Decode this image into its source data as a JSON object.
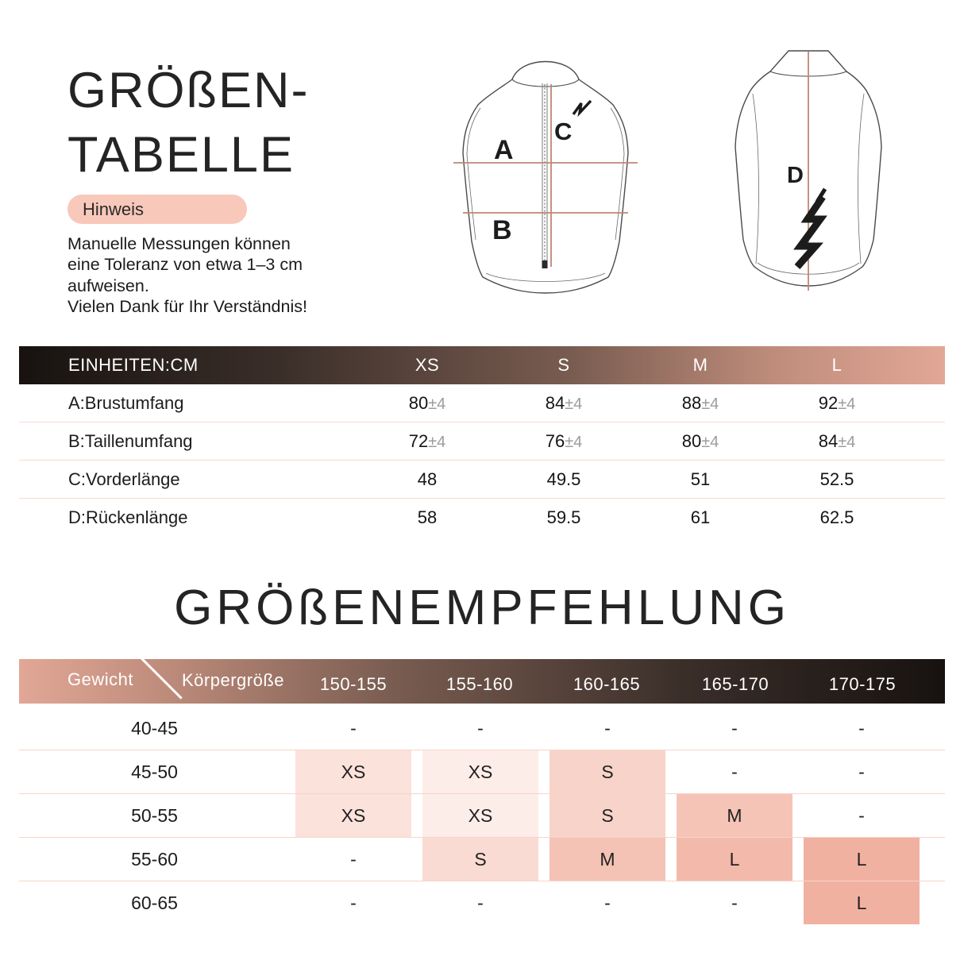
{
  "header": {
    "title_line1": "GRÖßEN-",
    "title_line2": "TABELLE",
    "hinweis_label": "Hinweis",
    "note_lines": [
      "Manuelle Messungen können",
      "eine Toleranz von etwa 1–3 cm",
      "aufweisen.",
      "Vielen Dank für Ihr Verständnis!"
    ]
  },
  "diagram": {
    "front": {
      "chest_label": "A",
      "waist_label": "B",
      "front_length_label": "C"
    },
    "back": {
      "back_length_label": "D"
    },
    "measure_line_color": "#c08673"
  },
  "measure_table": {
    "unit_header": "EINHEITEN:CM",
    "size_headers": [
      "XS",
      "S",
      "M",
      "L"
    ],
    "rows": [
      {
        "label": "A:Brustumfang",
        "values": [
          "80",
          "84",
          "88",
          "92"
        ],
        "tolerance": "±4"
      },
      {
        "label": "B:Taillenumfang",
        "values": [
          "72",
          "76",
          "80",
          "84"
        ],
        "tolerance": "±4"
      },
      {
        "label": "C:Vorderlänge",
        "values": [
          "48",
          "49.5",
          "51",
          "52.5"
        ],
        "tolerance": ""
      },
      {
        "label": "D:Rückenlänge",
        "values": [
          "58",
          "59.5",
          "61",
          "62.5"
        ],
        "tolerance": ""
      }
    ]
  },
  "recommendation": {
    "title": "GRÖßENEMPFEHLUNG",
    "row_axis_label": "Gewicht",
    "col_axis_label": "Körpergröße",
    "col_headers": [
      "150-155",
      "155-160",
      "160-165",
      "165-170",
      "170-175"
    ],
    "rows": [
      {
        "label": "40-45",
        "cells": [
          {
            "text": "-"
          },
          {
            "text": "-"
          },
          {
            "text": "-"
          },
          {
            "text": "-"
          },
          {
            "text": "-"
          }
        ]
      },
      {
        "label": "45-50",
        "cells": [
          {
            "text": "XS",
            "bg": "#fbe2db"
          },
          {
            "text": "XS",
            "bg": "#fdede9"
          },
          {
            "text": "S",
            "bg": "#f8d3c9"
          },
          {
            "text": "-"
          },
          {
            "text": "-"
          }
        ]
      },
      {
        "label": "50-55",
        "cells": [
          {
            "text": "XS",
            "bg": "#fbe2db"
          },
          {
            "text": "XS",
            "bg": "#fdede9"
          },
          {
            "text": "S",
            "bg": "#f8d3c9"
          },
          {
            "text": "M",
            "bg": "#f5c4b6"
          },
          {
            "text": "-"
          }
        ]
      },
      {
        "label": "55-60",
        "cells": [
          {
            "text": "-"
          },
          {
            "text": "S",
            "bg": "#fadbd3"
          },
          {
            "text": "M",
            "bg": "#f4c3b5"
          },
          {
            "text": "L",
            "bg": "#f3b9aa"
          },
          {
            "text": "L",
            "bg": "#f1b1a1"
          }
        ]
      },
      {
        "label": "60-65",
        "cells": [
          {
            "text": "-"
          },
          {
            "text": "-"
          },
          {
            "text": "-"
          },
          {
            "text": "-"
          },
          {
            "text": "L",
            "bg": "#f1b1a1"
          }
        ]
      }
    ]
  },
  "colors": {
    "hinweis_pill": "#f8c8ba",
    "measure_line": "#c08673",
    "bar_dark": "#171210",
    "bar_mid_dark": "#3a2e29",
    "bar_mid": "#7a5d51",
    "bar_mid_rose": "#c08d7c",
    "bar_rose": "#e2a796",
    "row_separator": "#f6d9d0",
    "tolerance_gray": "#9c9c9c",
    "vest_outline": "#4a4a4a"
  }
}
